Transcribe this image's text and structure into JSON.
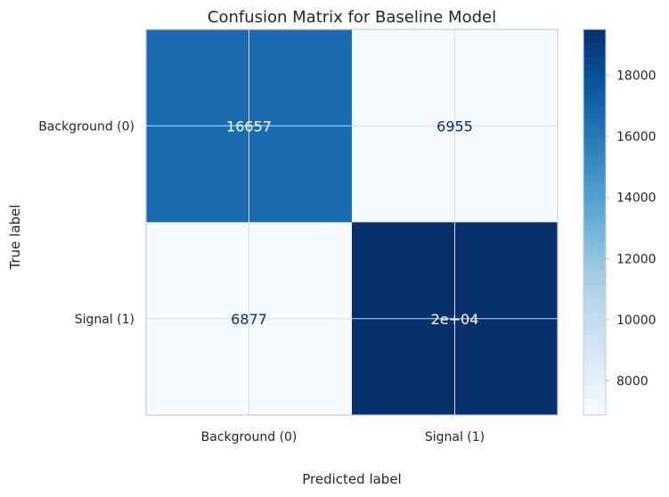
{
  "chart_data": {
    "type": "heatmap",
    "title": "Confusion Matrix for Baseline Model",
    "xlabel": "Predicted label",
    "ylabel": "True label",
    "x_categories": [
      "Background (0)",
      "Signal (1)"
    ],
    "y_categories": [
      "Background (0)",
      "Signal (1)"
    ],
    "values": [
      [
        16657,
        6955
      ],
      [
        6877,
        19500
      ]
    ],
    "cell_labels": [
      [
        "16657",
        "6955"
      ],
      [
        "6877",
        "2e+04"
      ]
    ],
    "colormap": "Blues",
    "colorbar": {
      "range": [
        6877,
        19500
      ],
      "ticks": [
        8000,
        10000,
        12000,
        14000,
        16000,
        18000
      ]
    },
    "grid": true
  }
}
